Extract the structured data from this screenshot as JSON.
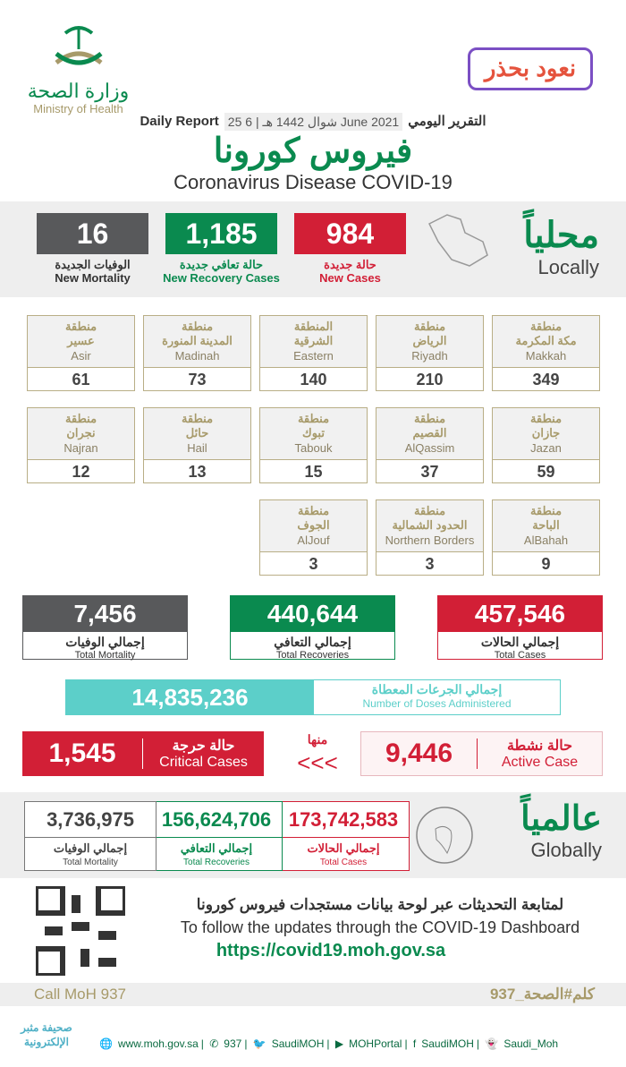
{
  "header": {
    "ministry_ar": "وزارة الصحة",
    "ministry_en": "Ministry of Health",
    "campaign_logo": "نعود بحذر",
    "report_label_en": "Daily Report",
    "report_label_ar": "التقرير اليومي",
    "date": "25 شوال 1442 هـ | 6 June 2021",
    "title_ar": "فيروس كورونا",
    "title_en": "Coronavirus Disease COVID-19"
  },
  "colors": {
    "red": "#d21f36",
    "green": "#0a8a4f",
    "gray": "#58595b",
    "teal": "#5ccfc9",
    "gold": "#a79a6a"
  },
  "locally": {
    "label_ar": "محلياً",
    "label_en": "Locally",
    "new_cases": {
      "value": "984",
      "ar": "حالة جديدة",
      "en": "New Cases"
    },
    "new_recovery": {
      "value": "1,185",
      "ar": "حالة تعافي جديدة",
      "en": "New Recovery Cases"
    },
    "new_mortality": {
      "value": "16",
      "ar": "الوفيات الجديدة",
      "en": "New Mortality"
    }
  },
  "regions": [
    {
      "ar1": "منطقة",
      "ar2": "مكة المكرمة",
      "en": "Makkah",
      "value": "349"
    },
    {
      "ar1": "منطقة",
      "ar2": "الرياض",
      "en": "Riyadh",
      "value": "210"
    },
    {
      "ar1": "المنطقة",
      "ar2": "الشرقية",
      "en": "Eastern",
      "value": "140"
    },
    {
      "ar1": "منطقة",
      "ar2": "المدينة المنورة",
      "en": "Madinah",
      "value": "73"
    },
    {
      "ar1": "منطقة",
      "ar2": "عسير",
      "en": "Asir",
      "value": "61"
    },
    {
      "ar1": "منطقة",
      "ar2": "جازان",
      "en": "Jazan",
      "value": "59"
    },
    {
      "ar1": "منطقة",
      "ar2": "القصيم",
      "en": "AlQassim",
      "value": "37"
    },
    {
      "ar1": "منطقة",
      "ar2": "تبوك",
      "en": "Tabouk",
      "value": "15"
    },
    {
      "ar1": "منطقة",
      "ar2": "حائل",
      "en": "Hail",
      "value": "13"
    },
    {
      "ar1": "منطقة",
      "ar2": "نجران",
      "en": "Najran",
      "value": "12"
    },
    {
      "ar1": "منطقة",
      "ar2": "الباحة",
      "en": "AlBahah",
      "value": "9"
    },
    {
      "ar1": "منطقة",
      "ar2": "الحدود الشمالية",
      "en": "Northern Borders",
      "value": "3"
    },
    {
      "ar1": "منطقة",
      "ar2": "الجوف",
      "en": "AlJouf",
      "value": "3"
    }
  ],
  "totals": {
    "cases": {
      "value": "457,546",
      "ar": "إجمالي الحالات",
      "en": "Total Cases"
    },
    "recoveries": {
      "value": "440,644",
      "ar": "إجمالي التعافي",
      "en": "Total Recoveries"
    },
    "mortality": {
      "value": "7,456",
      "ar": "إجمالي الوفيات",
      "en": "Total Mortality"
    }
  },
  "doses": {
    "value": "14,835,236",
    "ar": "إجمالي الجرعات المعطاة",
    "en": "Number of Doses Administered"
  },
  "active": {
    "value": "9,446",
    "ar": "حالة نشطة",
    "en": "Active Case"
  },
  "of_which": "منها",
  "arrows": "<<<",
  "critical": {
    "value": "1,545",
    "ar": "حالة حرجة",
    "en": "Critical Cases"
  },
  "globally": {
    "label_ar": "عالمياً",
    "label_en": "Globally",
    "cases": {
      "value": "173,742,583",
      "ar": "إجمالي الحالات",
      "en": "Total Cases"
    },
    "recoveries": {
      "value": "156,624,706",
      "ar": "إجمالي التعافي",
      "en": "Total Recoveries"
    },
    "mortality": {
      "value": "3,736,975",
      "ar": "إجمالي الوفيات",
      "en": "Total Mortality"
    }
  },
  "dashboard": {
    "ar": "لمتابعة التحديثات عبر لوحة بيانات مستجدات فيروس كورونا",
    "en": "To follow the updates through the COVID-19 Dashboard",
    "url": "https://covid19.moh.gov.sa"
  },
  "call": {
    "en": "Call MoH 937",
    "ar": "كلم#الصحة_937"
  },
  "footer": {
    "website": "www.moh.gov.sa",
    "phone": "937",
    "twitter": "SaudiMOH",
    "youtube": "MOHPortal",
    "facebook": "SaudiMOH",
    "snapchat": "Saudi_Moh"
  },
  "watermark": "صحيفة مثبر الإلكترونية"
}
